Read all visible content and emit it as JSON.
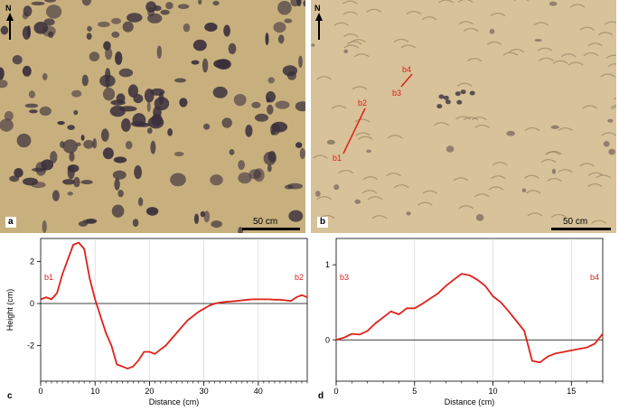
{
  "figure": {
    "panel_a": {
      "letter": "a",
      "scale": "50 cm",
      "north": "N"
    },
    "panel_b": {
      "letter": "b",
      "scale": "50 cm",
      "north": "N",
      "markers": {
        "b1": "b1",
        "b2": "b2",
        "b3": "b3",
        "b4": "b4"
      }
    },
    "panel_c": {
      "letter": "c"
    },
    "panel_d": {
      "letter": "d"
    },
    "colors": {
      "profile": "#e0201a",
      "sand": "#c8b07e",
      "clast": "#3a2f3c"
    }
  },
  "chart_data": [
    {
      "type": "line",
      "panel": "c",
      "xlabel": "Distance (cm)",
      "ylabel": "Height (cm)",
      "xlim": [
        0,
        49
      ],
      "ylim": [
        -3.7,
        3.1
      ],
      "xticks": [
        0,
        10,
        20,
        30,
        40
      ],
      "yticks": [
        2,
        0,
        -2
      ],
      "start_label": "b1",
      "end_label": "b2",
      "grid": true,
      "series": [
        {
          "x": [
            0,
            1,
            2,
            3,
            4,
            5,
            6,
            7,
            8,
            9,
            10,
            11,
            12,
            13,
            14,
            15,
            16,
            17,
            18,
            19,
            20,
            21,
            22,
            23,
            24,
            25,
            26,
            27,
            28,
            29,
            30,
            31,
            32,
            33,
            34,
            35,
            36,
            37,
            38,
            39,
            40,
            41,
            42,
            43,
            44,
            45,
            46,
            47,
            48,
            49
          ],
          "y": [
            0.2,
            0.3,
            0.2,
            0.5,
            1.4,
            2.1,
            2.8,
            2.9,
            2.6,
            1.2,
            0.2,
            -0.6,
            -1.4,
            -2.0,
            -2.9,
            -3.0,
            -3.1,
            -3.0,
            -2.7,
            -2.3,
            -2.3,
            -2.4,
            -2.2,
            -2.0,
            -1.7,
            -1.4,
            -1.1,
            -0.8,
            -0.6,
            -0.4,
            -0.25,
            -0.1,
            0.0,
            0.05,
            0.08,
            0.1,
            0.12,
            0.15,
            0.18,
            0.2,
            0.2,
            0.2,
            0.2,
            0.18,
            0.18,
            0.15,
            0.12,
            0.3,
            0.4,
            0.3
          ]
        }
      ]
    },
    {
      "type": "line",
      "panel": "d",
      "xlabel": "Distance (cm)",
      "ylabel": "",
      "xlim": [
        0,
        17
      ],
      "ylim": [
        -0.55,
        1.35
      ],
      "xticks": [
        0,
        5,
        10,
        15
      ],
      "yticks": [
        1,
        0
      ],
      "start_label": "b3",
      "end_label": "b4",
      "grid": true,
      "series": [
        {
          "x": [
            0,
            0.5,
            1,
            1.5,
            2,
            2.5,
            3,
            3.5,
            4,
            4.5,
            5,
            5.5,
            6,
            6.5,
            7,
            7.5,
            8,
            8.5,
            9,
            9.5,
            10,
            10.5,
            11,
            11.5,
            12,
            12.5,
            13,
            13.5,
            14,
            14.5,
            15,
            15.5,
            16,
            16.5,
            17
          ],
          "y": [
            0.0,
            0.03,
            0.08,
            0.07,
            0.12,
            0.22,
            0.3,
            0.38,
            0.34,
            0.42,
            0.42,
            0.48,
            0.55,
            0.62,
            0.72,
            0.8,
            0.88,
            0.86,
            0.8,
            0.72,
            0.58,
            0.5,
            0.38,
            0.25,
            0.12,
            -0.28,
            -0.3,
            -0.22,
            -0.18,
            -0.16,
            -0.14,
            -0.12,
            -0.1,
            -0.05,
            0.08
          ]
        }
      ]
    }
  ]
}
